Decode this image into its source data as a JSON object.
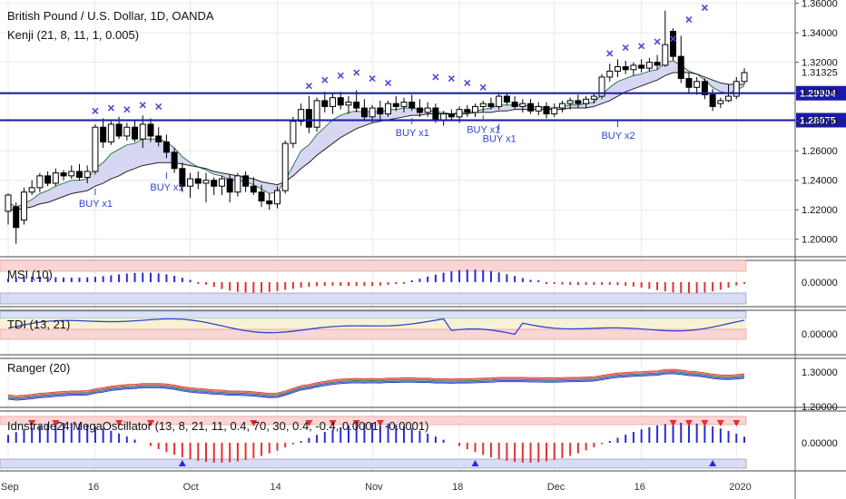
{
  "chart_data": {
    "type": "candlestick",
    "title": "British Pound / U.S. Dollar, 1D, OANDA",
    "indicator": "Kenji (21, 8, 11, 1, 0.005)",
    "price_ticks": [
      "1.36000",
      "1.34000",
      "1.32000",
      "1.30000",
      "1.28000",
      "1.26000",
      "1.24000",
      "1.22000",
      "1.20000"
    ],
    "ylim": [
      1.19,
      1.361
    ],
    "last_price": "1.31325",
    "hlines": [
      {
        "value": 1.29904,
        "label": "1.29904",
        "color": "#1a1aa8"
      },
      {
        "value": 1.28075,
        "label": "1.28075",
        "color": "#1a1aa8"
      }
    ],
    "x_labels": [
      "Sep",
      "16",
      "Oct",
      "14",
      "Nov",
      "18",
      "Dec",
      "16",
      "2020"
    ],
    "candles": [
      {
        "o": 1.219,
        "h": 1.231,
        "l": 1.21,
        "c": 1.23
      },
      {
        "o": 1.222,
        "h": 1.225,
        "l": 1.197,
        "c": 1.208
      },
      {
        "o": 1.213,
        "h": 1.235,
        "l": 1.21,
        "c": 1.232
      },
      {
        "o": 1.232,
        "h": 1.24,
        "l": 1.23,
        "c": 1.235
      },
      {
        "o": 1.235,
        "h": 1.245,
        "l": 1.232,
        "c": 1.243
      },
      {
        "o": 1.243,
        "h": 1.246,
        "l": 1.236,
        "c": 1.238
      },
      {
        "o": 1.238,
        "h": 1.248,
        "l": 1.236,
        "c": 1.245
      },
      {
        "o": 1.245,
        "h": 1.247,
        "l": 1.24,
        "c": 1.243
      },
      {
        "o": 1.243,
        "h": 1.25,
        "l": 1.241,
        "c": 1.246
      },
      {
        "o": 1.246,
        "h": 1.251,
        "l": 1.24,
        "c": 1.242
      },
      {
        "o": 1.242,
        "h": 1.25,
        "l": 1.238,
        "c": 1.246
      },
      {
        "o": 1.246,
        "h": 1.278,
        "l": 1.244,
        "c": 1.276
      },
      {
        "o": 1.276,
        "h": 1.282,
        "l": 1.262,
        "c": 1.266
      },
      {
        "o": 1.266,
        "h": 1.28,
        "l": 1.264,
        "c": 1.278
      },
      {
        "o": 1.278,
        "h": 1.283,
        "l": 1.268,
        "c": 1.27
      },
      {
        "o": 1.27,
        "h": 1.279,
        "l": 1.267,
        "c": 1.276
      },
      {
        "o": 1.276,
        "h": 1.281,
        "l": 1.266,
        "c": 1.268
      },
      {
        "o": 1.268,
        "h": 1.284,
        "l": 1.262,
        "c": 1.278
      },
      {
        "o": 1.278,
        "h": 1.282,
        "l": 1.266,
        "c": 1.27
      },
      {
        "o": 1.27,
        "h": 1.276,
        "l": 1.263,
        "c": 1.266
      },
      {
        "o": 1.266,
        "h": 1.271,
        "l": 1.255,
        "c": 1.259
      },
      {
        "o": 1.259,
        "h": 1.262,
        "l": 1.245,
        "c": 1.248
      },
      {
        "o": 1.248,
        "h": 1.252,
        "l": 1.232,
        "c": 1.236
      },
      {
        "o": 1.236,
        "h": 1.245,
        "l": 1.228,
        "c": 1.241
      },
      {
        "o": 1.241,
        "h": 1.246,
        "l": 1.234,
        "c": 1.238
      },
      {
        "o": 1.238,
        "h": 1.245,
        "l": 1.225,
        "c": 1.24
      },
      {
        "o": 1.24,
        "h": 1.242,
        "l": 1.23,
        "c": 1.236
      },
      {
        "o": 1.236,
        "h": 1.243,
        "l": 1.23,
        "c": 1.241
      },
      {
        "o": 1.241,
        "h": 1.244,
        "l": 1.225,
        "c": 1.232
      },
      {
        "o": 1.232,
        "h": 1.245,
        "l": 1.229,
        "c": 1.243
      },
      {
        "o": 1.243,
        "h": 1.246,
        "l": 1.232,
        "c": 1.236
      },
      {
        "o": 1.236,
        "h": 1.242,
        "l": 1.23,
        "c": 1.232
      },
      {
        "o": 1.232,
        "h": 1.237,
        "l": 1.222,
        "c": 1.226
      },
      {
        "o": 1.226,
        "h": 1.231,
        "l": 1.22,
        "c": 1.224
      },
      {
        "o": 1.224,
        "h": 1.236,
        "l": 1.221,
        "c": 1.233
      },
      {
        "o": 1.233,
        "h": 1.267,
        "l": 1.231,
        "c": 1.265
      },
      {
        "o": 1.265,
        "h": 1.283,
        "l": 1.262,
        "c": 1.28
      },
      {
        "o": 1.28,
        "h": 1.292,
        "l": 1.277,
        "c": 1.288
      },
      {
        "o": 1.288,
        "h": 1.297,
        "l": 1.272,
        "c": 1.276
      },
      {
        "o": 1.276,
        "h": 1.296,
        "l": 1.273,
        "c": 1.294
      },
      {
        "o": 1.294,
        "h": 1.3,
        "l": 1.286,
        "c": 1.29
      },
      {
        "o": 1.29,
        "h": 1.299,
        "l": 1.285,
        "c": 1.296
      },
      {
        "o": 1.296,
        "h": 1.3,
        "l": 1.288,
        "c": 1.291
      },
      {
        "o": 1.291,
        "h": 1.297,
        "l": 1.285,
        "c": 1.293
      },
      {
        "o": 1.293,
        "h": 1.301,
        "l": 1.286,
        "c": 1.289
      },
      {
        "o": 1.289,
        "h": 1.295,
        "l": 1.28,
        "c": 1.283
      },
      {
        "o": 1.283,
        "h": 1.291,
        "l": 1.279,
        "c": 1.289
      },
      {
        "o": 1.289,
        "h": 1.294,
        "l": 1.281,
        "c": 1.285
      },
      {
        "o": 1.285,
        "h": 1.294,
        "l": 1.283,
        "c": 1.292
      },
      {
        "o": 1.292,
        "h": 1.297,
        "l": 1.287,
        "c": 1.29
      },
      {
        "o": 1.29,
        "h": 1.296,
        "l": 1.286,
        "c": 1.293
      },
      {
        "o": 1.293,
        "h": 1.298,
        "l": 1.287,
        "c": 1.289
      },
      {
        "o": 1.289,
        "h": 1.295,
        "l": 1.283,
        "c": 1.286
      },
      {
        "o": 1.286,
        "h": 1.293,
        "l": 1.283,
        "c": 1.289
      },
      {
        "o": 1.289,
        "h": 1.292,
        "l": 1.279,
        "c": 1.281
      },
      {
        "o": 1.281,
        "h": 1.287,
        "l": 1.277,
        "c": 1.285
      },
      {
        "o": 1.285,
        "h": 1.288,
        "l": 1.281,
        "c": 1.283
      },
      {
        "o": 1.283,
        "h": 1.29,
        "l": 1.279,
        "c": 1.288
      },
      {
        "o": 1.288,
        "h": 1.291,
        "l": 1.283,
        "c": 1.286
      },
      {
        "o": 1.286,
        "h": 1.292,
        "l": 1.283,
        "c": 1.29
      },
      {
        "o": 1.29,
        "h": 1.294,
        "l": 1.286,
        "c": 1.292
      },
      {
        "o": 1.292,
        "h": 1.296,
        "l": 1.288,
        "c": 1.29
      },
      {
        "o": 1.29,
        "h": 1.299,
        "l": 1.288,
        "c": 1.297
      },
      {
        "o": 1.297,
        "h": 1.299,
        "l": 1.291,
        "c": 1.293
      },
      {
        "o": 1.293,
        "h": 1.297,
        "l": 1.288,
        "c": 1.29
      },
      {
        "o": 1.29,
        "h": 1.295,
        "l": 1.286,
        "c": 1.292
      },
      {
        "o": 1.292,
        "h": 1.295,
        "l": 1.285,
        "c": 1.287
      },
      {
        "o": 1.287,
        "h": 1.293,
        "l": 1.284,
        "c": 1.29
      },
      {
        "o": 1.29,
        "h": 1.293,
        "l": 1.282,
        "c": 1.285
      },
      {
        "o": 1.285,
        "h": 1.292,
        "l": 1.283,
        "c": 1.289
      },
      {
        "o": 1.289,
        "h": 1.294,
        "l": 1.286,
        "c": 1.292
      },
      {
        "o": 1.292,
        "h": 1.296,
        "l": 1.288,
        "c": 1.294
      },
      {
        "o": 1.294,
        "h": 1.298,
        "l": 1.289,
        "c": 1.292
      },
      {
        "o": 1.292,
        "h": 1.297,
        "l": 1.289,
        "c": 1.295
      },
      {
        "o": 1.295,
        "h": 1.299,
        "l": 1.292,
        "c": 1.297
      },
      {
        "o": 1.297,
        "h": 1.312,
        "l": 1.295,
        "c": 1.31
      },
      {
        "o": 1.31,
        "h": 1.319,
        "l": 1.307,
        "c": 1.314
      },
      {
        "o": 1.314,
        "h": 1.322,
        "l": 1.31,
        "c": 1.317
      },
      {
        "o": 1.317,
        "h": 1.321,
        "l": 1.312,
        "c": 1.315
      },
      {
        "o": 1.315,
        "h": 1.32,
        "l": 1.311,
        "c": 1.318
      },
      {
        "o": 1.318,
        "h": 1.322,
        "l": 1.313,
        "c": 1.316
      },
      {
        "o": 1.316,
        "h": 1.323,
        "l": 1.314,
        "c": 1.32
      },
      {
        "o": 1.32,
        "h": 1.325,
        "l": 1.315,
        "c": 1.318
      },
      {
        "o": 1.318,
        "h": 1.355,
        "l": 1.317,
        "c": 1.332
      },
      {
        "o": 1.341,
        "h": 1.343,
        "l": 1.321,
        "c": 1.324
      },
      {
        "o": 1.324,
        "h": 1.338,
        "l": 1.306,
        "c": 1.309
      },
      {
        "o": 1.309,
        "h": 1.313,
        "l": 1.299,
        "c": 1.303
      },
      {
        "o": 1.303,
        "h": 1.31,
        "l": 1.298,
        "c": 1.307
      },
      {
        "o": 1.307,
        "h": 1.309,
        "l": 1.295,
        "c": 1.298
      },
      {
        "o": 1.298,
        "h": 1.302,
        "l": 1.287,
        "c": 1.29
      },
      {
        "o": 1.292,
        "h": 1.296,
        "l": 1.289,
        "c": 1.294
      },
      {
        "o": 1.294,
        "h": 1.305,
        "l": 1.293,
        "c": 1.297
      },
      {
        "o": 1.297,
        "h": 1.31,
        "l": 1.295,
        "c": 1.307
      },
      {
        "o": 1.307,
        "h": 1.316,
        "l": 1.305,
        "c": 1.313
      }
    ],
    "ma_fast": [
      1.225,
      1.222,
      1.224,
      1.227,
      1.231,
      1.233,
      1.236,
      1.238,
      1.24,
      1.24,
      1.241,
      1.248,
      1.252,
      1.258,
      1.261,
      1.264,
      1.265,
      1.268,
      1.268,
      1.268,
      1.266,
      1.262,
      1.256,
      1.252,
      1.249,
      1.247,
      1.244,
      1.243,
      1.24,
      1.24,
      1.239,
      1.237,
      1.234,
      1.231,
      1.232,
      1.24,
      1.25,
      1.26,
      1.264,
      1.271,
      1.276,
      1.281,
      1.284,
      1.286,
      1.287,
      1.286,
      1.287,
      1.286,
      1.288,
      1.288,
      1.289,
      1.289,
      1.288,
      1.288,
      1.286,
      1.286,
      1.285,
      1.286,
      1.286,
      1.287,
      1.288,
      1.289,
      1.291,
      1.291,
      1.291,
      1.291,
      1.29,
      1.29,
      1.289,
      1.289,
      1.29,
      1.291,
      1.291,
      1.292,
      1.293,
      1.298,
      1.303,
      1.307,
      1.309,
      1.311,
      1.312,
      1.314,
      1.315,
      1.32,
      1.321,
      1.318,
      1.314,
      1.312,
      1.308,
      1.303,
      1.3,
      1.299,
      1.301,
      1.304
    ],
    "ma_slow": [
      1.22,
      1.22,
      1.221,
      1.222,
      1.224,
      1.225,
      1.227,
      1.229,
      1.231,
      1.232,
      1.233,
      1.236,
      1.238,
      1.241,
      1.243,
      1.246,
      1.248,
      1.25,
      1.251,
      1.252,
      1.252,
      1.252,
      1.251,
      1.25,
      1.249,
      1.248,
      1.246,
      1.245,
      1.244,
      1.243,
      1.242,
      1.241,
      1.239,
      1.238,
      1.237,
      1.239,
      1.243,
      1.248,
      1.252,
      1.257,
      1.261,
      1.265,
      1.269,
      1.272,
      1.275,
      1.277,
      1.279,
      1.28,
      1.281,
      1.282,
      1.283,
      1.284,
      1.284,
      1.285,
      1.285,
      1.285,
      1.285,
      1.285,
      1.285,
      1.286,
      1.286,
      1.286,
      1.287,
      1.287,
      1.288,
      1.288,
      1.288,
      1.288,
      1.288,
      1.288,
      1.288,
      1.289,
      1.289,
      1.289,
      1.29,
      1.292,
      1.294,
      1.297,
      1.3,
      1.302,
      1.304,
      1.306,
      1.308,
      1.311,
      1.313,
      1.313,
      1.313,
      1.312,
      1.31,
      1.308,
      1.306,
      1.305,
      1.305,
      1.305
    ],
    "sell_marks": [
      {
        "i": 11,
        "y": 1.287
      },
      {
        "i": 13,
        "y": 1.289
      },
      {
        "i": 15,
        "y": 1.288
      },
      {
        "i": 17,
        "y": 1.291
      },
      {
        "i": 19,
        "y": 1.29
      },
      {
        "i": 38,
        "y": 1.304
      },
      {
        "i": 40,
        "y": 1.308
      },
      {
        "i": 42,
        "y": 1.311
      },
      {
        "i": 44,
        "y": 1.313
      },
      {
        "i": 46,
        "y": 1.309
      },
      {
        "i": 48,
        "y": 1.306
      },
      {
        "i": 54,
        "y": 1.31
      },
      {
        "i": 56,
        "y": 1.309
      },
      {
        "i": 58,
        "y": 1.306
      },
      {
        "i": 60,
        "y": 1.303
      },
      {
        "i": 76,
        "y": 1.326
      },
      {
        "i": 78,
        "y": 1.33
      },
      {
        "i": 80,
        "y": 1.331
      },
      {
        "i": 82,
        "y": 1.334
      },
      {
        "i": 84,
        "y": 1.336
      },
      {
        "i": 86,
        "y": 1.349
      },
      {
        "i": 88,
        "y": 1.357
      }
    ],
    "buy_labels": [
      {
        "i": 11,
        "text": "BUY x1",
        "price": 1.222
      },
      {
        "i": 20,
        "text": "BUY x1",
        "price": 1.233
      },
      {
        "i": 51,
        "text": "BUY x1",
        "price": 1.27
      },
      {
        "i": 60,
        "text": "BUY x1",
        "price": 1.272
      },
      {
        "i": 62,
        "text": "BUY x1",
        "price": 1.266
      },
      {
        "i": 77,
        "text": "BUY x2",
        "price": 1.268
      }
    ],
    "panels": [
      {
        "name": "MSI",
        "label": "MSI (10)",
        "ticks": [
          "0.00000"
        ]
      },
      {
        "name": "TDI",
        "label": "TDI (13, 21)",
        "ticks": [
          "0.00000"
        ]
      },
      {
        "name": "Ranger",
        "label": "Ranger (20)",
        "ticks": [
          "1.30000",
          "1.20000"
        ]
      },
      {
        "name": "MegaOscillator",
        "label": "Idnstrade24 MegaOscillator (13, 8, 21, 11, 0.4, 70, 30, 0.4, -0.4, 0.0001, -0.0001)",
        "ticks": [
          "0.00000"
        ]
      }
    ],
    "colors": {
      "up": "#ffffff",
      "down": "#000000",
      "cloud": "#c9c9ef",
      "level": "#1a1aa8",
      "sell": "#4b4bd6",
      "pos_bar": "#2b2bd6",
      "neg_bar": "#e53030",
      "grid": "#eaeaea"
    }
  }
}
